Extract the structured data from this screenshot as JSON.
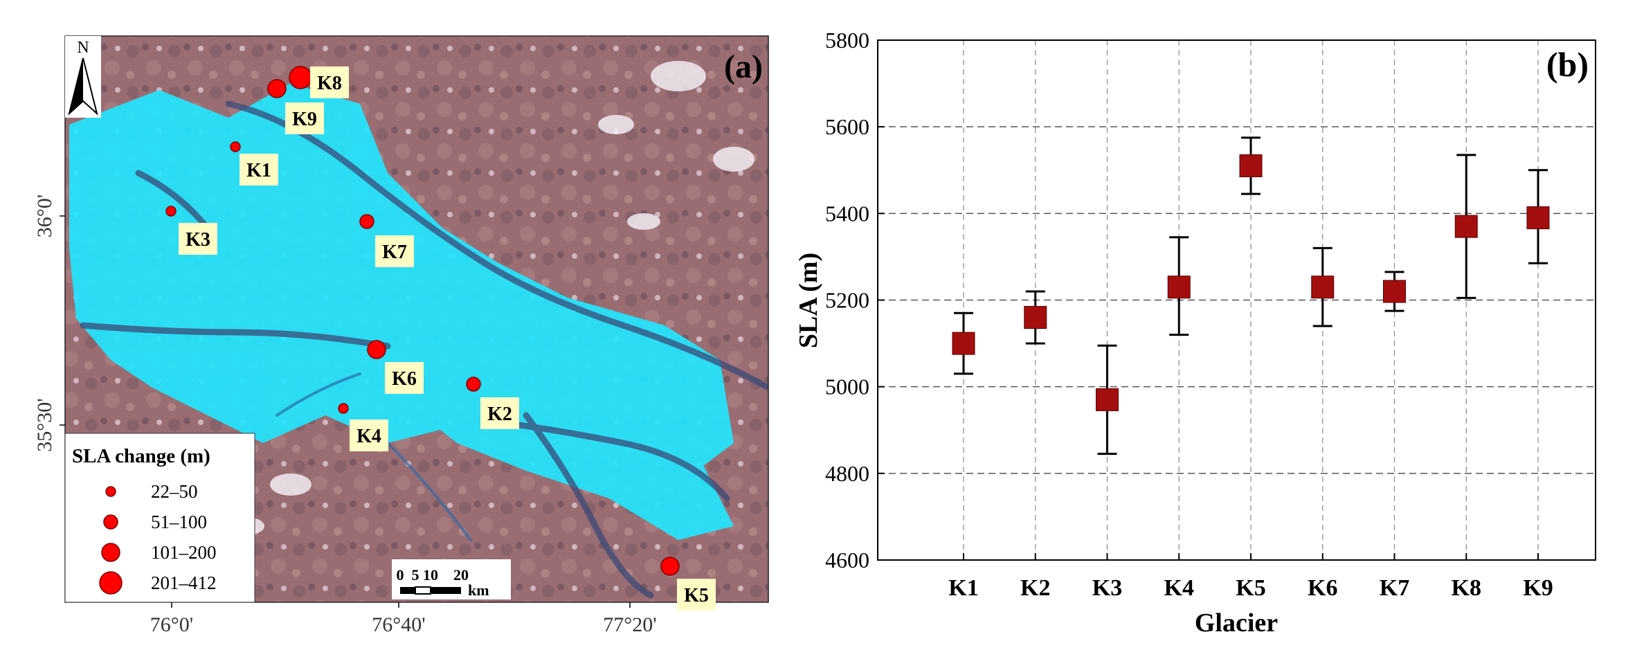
{
  "map": {
    "panel_label": "(a)",
    "north_label": "N",
    "x_ticks": [
      "76°0'",
      "76°40'",
      "77°20'"
    ],
    "y_ticks": [
      "36°0'",
      "35°30'"
    ],
    "markers": [
      {
        "label": "K1",
        "size_class": 0
      },
      {
        "label": "K2",
        "size_class": 1
      },
      {
        "label": "K3",
        "size_class": 0
      },
      {
        "label": "K4",
        "size_class": 0
      },
      {
        "label": "K5",
        "size_class": 2
      },
      {
        "label": "K6",
        "size_class": 2
      },
      {
        "label": "K7",
        "size_class": 1
      },
      {
        "label": "K8",
        "size_class": 3
      },
      {
        "label": "K9",
        "size_class": 2
      }
    ],
    "legend": {
      "title": "SLA change (m)",
      "items": [
        "22–50",
        "51–100",
        "101–200",
        "201–412"
      ]
    },
    "scale_bar": {
      "ticks": [
        "0",
        "5",
        "10",
        "20"
      ],
      "unit": "km"
    },
    "colors": {
      "marker": "#ff0000",
      "label_bg": "#fffbc4",
      "snow": "#22e6ff",
      "terrain": "#9a6d72"
    }
  },
  "chart_data": {
    "type": "scatter",
    "panel_label": "(b)",
    "title": "",
    "xlabel": "Glacier",
    "ylabel": "SLA (m)",
    "categories": [
      "K1",
      "K2",
      "K3",
      "K4",
      "K5",
      "K6",
      "K7",
      "K8",
      "K9"
    ],
    "values": [
      5100,
      5160,
      4970,
      5230,
      5510,
      5230,
      5220,
      5370,
      5390
    ],
    "error_low": [
      5030,
      5100,
      4845,
      5120,
      5445,
      5140,
      5175,
      5205,
      5285
    ],
    "error_high": [
      5170,
      5220,
      5095,
      5345,
      5575,
      5320,
      5265,
      5535,
      5500
    ],
    "ylim": [
      4600,
      5800
    ],
    "yticks": [
      "4600",
      "4800",
      "5000",
      "5200",
      "5400",
      "5600",
      "5800"
    ],
    "grid": true,
    "marker_color": "#a50e0e"
  }
}
